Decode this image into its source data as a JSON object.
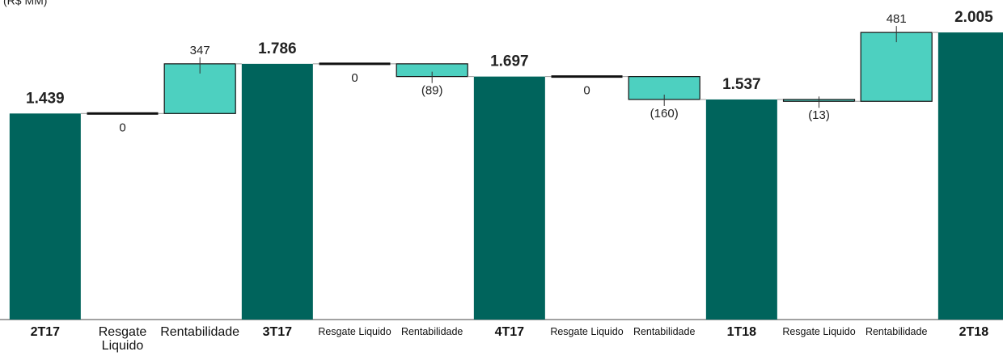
{
  "chart_data": {
    "type": "waterfall",
    "title": "(R$ MM)",
    "categories": [
      "2T17",
      "Resgate Liquido",
      "Rentabilidade",
      "3T17",
      "Resgate Liquido",
      "Rentabilidade",
      "4T17",
      "Resgate Liquido",
      "Rentabilidade",
      "1T18",
      "Resgate Liquido",
      "Rentabilidade",
      "2T18"
    ],
    "measure": [
      "total",
      "relative",
      "relative",
      "total",
      "relative",
      "relative",
      "total",
      "relative",
      "relative",
      "total",
      "relative",
      "relative",
      "total"
    ],
    "values": [
      1439,
      0,
      347,
      1786,
      0,
      -89,
      1697,
      0,
      -160,
      1537,
      -13,
      481,
      2005
    ],
    "value_labels": [
      "1.439",
      "0",
      "347",
      "1.786",
      "0",
      "(89)",
      "1.697",
      "0",
      "(160)",
      "1.537",
      "(13)",
      "481",
      "2.005"
    ],
    "total_color": "#00645c",
    "relative_color": "#4dd0c0",
    "ylim": [
      0,
      2200
    ]
  }
}
